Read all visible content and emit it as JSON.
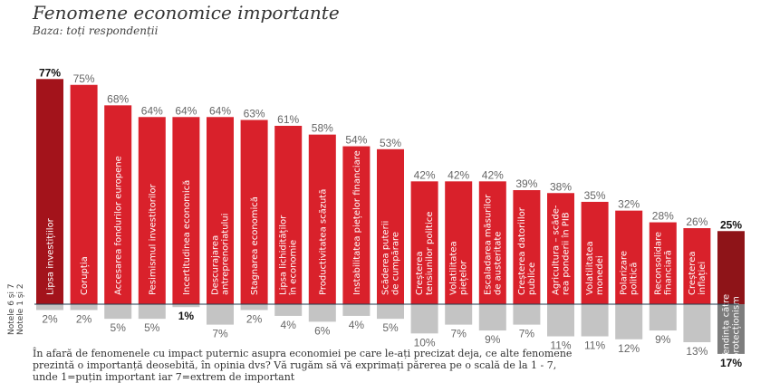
{
  "header": {
    "title": "Fenomene economice importante",
    "subtitle": "Baza: toți respondenții"
  },
  "side_labels": {
    "top": "Notele 6 și 7",
    "bottom": "Notele 1 și 2"
  },
  "footnote": "În afară de fenomenele cu impact puternic asupra economiei pe care le-ați precizat deja, ce alte fenomene prezintă o importanță deosebită, în opinia dvs? Vă rugăm să vă exprimați părerea pe o scală de la 1 - 7, unde 1=puțin important iar 7=extrem de important",
  "chart_data": {
    "type": "bar",
    "title": "Fenomene economice importante",
    "subtitle": "Baza: toți respondenții",
    "xlabel": "",
    "ylabel": "",
    "grid": false,
    "categories": [
      "Lipsa investițiilor",
      "Corupția",
      "Accesarea fondurilor europene",
      "Pesimismul investitorilor",
      "Incertitudinea economică",
      "Descurajarea antreprenoriatului",
      "Stagnarea economică",
      "Lipsa lichidităților în economie",
      "Productivitatea scăzută",
      "Instabilitatea piețelor financiare",
      "Scăderea puterii de cumpărare",
      "Creșterea tensiunilor politice",
      "Volatilitatea piețelor",
      "Escaladarea măsurilor de austeritate",
      "Creșterea datoriilor publice",
      "Agricultura – scăderea ponderii în PIB",
      "Volatilitatea monedei",
      "Polarizare politică",
      "Reconsolidare financiară",
      "Creșterea inflației",
      "Tendința către protecționism"
    ],
    "category_lines": [
      [
        "Lipsa investițiilor"
      ],
      [
        "Corupția"
      ],
      [
        "Accesarea fondurilor europene"
      ],
      [
        "Pesimismul investitorilor"
      ],
      [
        "Incertitudinea economică"
      ],
      [
        "Descurajarea",
        "antreprenoriatului"
      ],
      [
        "Stagnarea economică"
      ],
      [
        "Lipsa lichidităților",
        "în economie"
      ],
      [
        "Productivitatea scăzută"
      ],
      [
        "Instabilitatea piețelor financiare"
      ],
      [
        "Scăderea puterii",
        "de cumpărare"
      ],
      [
        "Creșterea",
        "tensiunilor politice"
      ],
      [
        "Volatilitatea",
        "piețelor"
      ],
      [
        "Escaladarea măsurilor",
        "de austeritate"
      ],
      [
        "Creșterea datoriilor",
        "publice"
      ],
      [
        "Agricultura – scăde-",
        "rea ponderii în PIB"
      ],
      [
        "Volatilitatea",
        "monedei"
      ],
      [
        "Polarizare",
        "politică"
      ],
      [
        "Reconsolidare",
        "financiară"
      ],
      [
        "Creșterea",
        "inflației"
      ],
      [
        "Tendința către",
        "protecționism"
      ]
    ],
    "series": [
      {
        "name": "Notele 6 și 7",
        "unit": "%",
        "values": [
          77,
          75,
          68,
          64,
          64,
          64,
          63,
          61,
          58,
          54,
          53,
          42,
          42,
          42,
          39,
          38,
          35,
          32,
          28,
          26,
          25
        ]
      },
      {
        "name": "Notele 1 și 2",
        "unit": "%",
        "values": [
          2,
          2,
          5,
          5,
          1,
          7,
          2,
          4,
          6,
          4,
          5,
          10,
          7,
          9,
          7,
          11,
          11,
          12,
          9,
          13,
          17
        ]
      }
    ],
    "highlighted_categories": [
      "Lipsa investițiilor",
      "Tendința către protecționism"
    ],
    "bold_labels": {
      "top": [
        0,
        20
      ],
      "bottom": [
        4,
        20
      ]
    },
    "colors": {
      "top": "#d9212b",
      "top_highlight": "#a3131b",
      "top_last": "#8e1418",
      "bottom": "#c4c4c4",
      "bottom_highlight": "#7d7d7d",
      "baseline": "#1f3a4d",
      "label": "#666666",
      "label_bold": "#111111"
    },
    "ylim": [
      -20,
      80
    ]
  }
}
